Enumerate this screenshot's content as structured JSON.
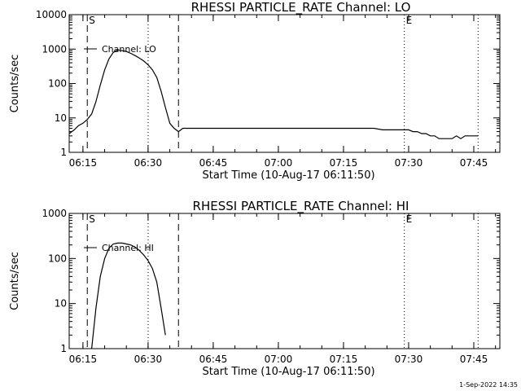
{
  "footer_stamp": "1-Sep-2022 14:35",
  "chart_data": [
    {
      "type": "line",
      "title": "RHESSI PARTICLE_RATE Channel: LO",
      "xlabel": "Start Time (10-Aug-17 06:11:50)",
      "ylabel": "Counts/sec",
      "yscale": "log",
      "ylim": [
        1,
        10000
      ],
      "xlim": [
        "06:11:50",
        "07:51:00"
      ],
      "x_ticks": [
        "06:15",
        "06:30",
        "06:45",
        "07:00",
        "07:15",
        "07:30",
        "07:45"
      ],
      "y_ticks": [
        "1",
        "10",
        "100",
        "1000",
        "10000"
      ],
      "legend": {
        "label": "Channel: LO",
        "placement": "top-left"
      },
      "markers": [
        {
          "label": "S",
          "time": "06:16",
          "style": "dashed"
        },
        {
          "label": "",
          "time": "06:30",
          "style": "dotted"
        },
        {
          "label": "",
          "time": "06:37",
          "style": "dashed"
        },
        {
          "label": "E",
          "time": "07:29",
          "style": "dotted"
        },
        {
          "label": "",
          "time": "07:46",
          "style": "dotted"
        }
      ],
      "series": [
        {
          "name": "Channel: LO",
          "x": [
            "06:11:50",
            "06:13",
            "06:14",
            "06:15",
            "06:16",
            "06:17",
            "06:18",
            "06:19",
            "06:20",
            "06:21",
            "06:22",
            "06:23",
            "06:24",
            "06:25",
            "06:26",
            "06:27",
            "06:28",
            "06:29",
            "06:30",
            "06:31",
            "06:32",
            "06:33",
            "06:34",
            "06:35",
            "06:36",
            "06:37",
            "06:38",
            "06:40",
            "06:42",
            "06:44",
            "06:46",
            "06:48",
            "06:50",
            "06:52",
            "06:54",
            "06:56",
            "06:58",
            "07:00",
            "07:02",
            "07:04",
            "07:06",
            "07:08",
            "07:10",
            "07:12",
            "07:14",
            "07:16",
            "07:18",
            "07:20",
            "07:22",
            "07:24",
            "07:26",
            "07:28",
            "07:30",
            "07:31",
            "07:32",
            "07:33",
            "07:34",
            "07:35",
            "07:36",
            "07:37",
            "07:38",
            "07:39",
            "07:40",
            "07:41",
            "07:42",
            "07:43",
            "07:44",
            "07:45",
            "07:46"
          ],
          "values": [
            3.5,
            4.5,
            6,
            7,
            9,
            13,
            30,
            90,
            250,
            520,
            800,
            950,
            900,
            850,
            750,
            650,
            550,
            450,
            350,
            250,
            150,
            60,
            20,
            7,
            5,
            4,
            5,
            5,
            5,
            5,
            5,
            5,
            5,
            5,
            5,
            5,
            5,
            5,
            5,
            5,
            5,
            5,
            5,
            5,
            5,
            5,
            5,
            5,
            5,
            4.5,
            4.5,
            4.5,
            4.5,
            4,
            4,
            3.5,
            3.5,
            3,
            3,
            2.5,
            2.5,
            2.5,
            2.5,
            3,
            2.5,
            3,
            3,
            3,
            3
          ]
        }
      ]
    },
    {
      "type": "line",
      "title": "RHESSI PARTICLE_RATE Channel: HI",
      "xlabel": "Start Time (10-Aug-17 06:11:50)",
      "ylabel": "Counts/sec",
      "yscale": "log",
      "ylim": [
        1,
        1000
      ],
      "xlim": [
        "06:11:50",
        "07:51:00"
      ],
      "x_ticks": [
        "06:15",
        "06:30",
        "06:45",
        "07:00",
        "07:15",
        "07:30",
        "07:45"
      ],
      "y_ticks": [
        "1",
        "10",
        "100",
        "1000"
      ],
      "legend": {
        "label": "Channel: HI",
        "placement": "top-left"
      },
      "markers": [
        {
          "label": "S",
          "time": "06:16",
          "style": "dashed"
        },
        {
          "label": "",
          "time": "06:30",
          "style": "dotted"
        },
        {
          "label": "",
          "time": "06:37",
          "style": "dashed"
        },
        {
          "label": "E",
          "time": "07:29",
          "style": "dotted"
        },
        {
          "label": "",
          "time": "07:46",
          "style": "dotted"
        }
      ],
      "series": [
        {
          "name": "Channel: HI",
          "x": [
            "06:17",
            "06:18",
            "06:19",
            "06:20",
            "06:21",
            "06:22",
            "06:23",
            "06:24",
            "06:25",
            "06:26",
            "06:27",
            "06:28",
            "06:29",
            "06:30",
            "06:31",
            "06:32",
            "06:33",
            "06:34"
          ],
          "values": [
            1,
            8,
            40,
            100,
            170,
            210,
            220,
            220,
            210,
            200,
            180,
            150,
            120,
            90,
            60,
            30,
            8,
            2
          ]
        }
      ]
    }
  ]
}
